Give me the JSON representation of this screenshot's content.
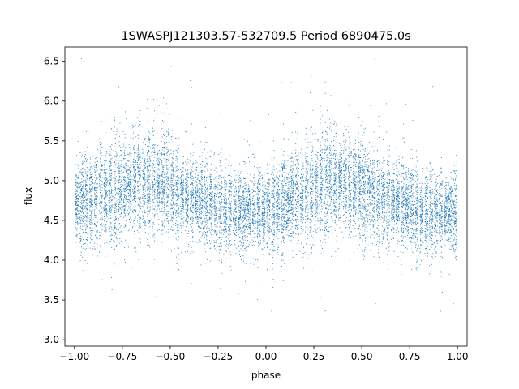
{
  "chart_data": {
    "type": "scatter",
    "title": "1SWASPJ121303.57-532709.5 Period 6890475.0s",
    "xlabel": "phase",
    "ylabel": "flux",
    "xlim": [
      -1.05,
      1.05
    ],
    "ylim": [
      2.92,
      6.68
    ],
    "x_ticks": [
      -1.0,
      -0.75,
      -0.5,
      -0.25,
      0.0,
      0.25,
      0.5,
      0.75,
      1.0
    ],
    "x_tick_labels": [
      "−1.00",
      "−0.75",
      "−0.50",
      "−0.25",
      "0.00",
      "0.25",
      "0.50",
      "0.75",
      "1.00"
    ],
    "y_ticks": [
      3.0,
      3.5,
      4.0,
      4.5,
      5.0,
      5.5,
      6.0,
      6.5
    ],
    "y_tick_labels": [
      "3.0",
      "3.5",
      "4.0",
      "4.5",
      "5.0",
      "5.5",
      "6.0",
      "6.5"
    ],
    "grid": false,
    "legend": "none",
    "series": [
      {
        "color": "#1f77b4",
        "marker": "point",
        "x_range": [
          -1.0,
          1.0
        ],
        "y_range": [
          3.05,
          6.55
        ],
        "approx_points": 12000,
        "binned_profile": {
          "phase": [
            -1.0,
            -0.9,
            -0.8,
            -0.7,
            -0.6,
            -0.5,
            -0.4,
            -0.3,
            -0.2,
            -0.1,
            0.0,
            0.1,
            0.2,
            0.3,
            0.4,
            0.5,
            0.6,
            0.7,
            0.8,
            0.9,
            1.0
          ],
          "median_flux": [
            4.72,
            4.8,
            4.85,
            4.95,
            5.0,
            4.9,
            4.75,
            4.72,
            4.6,
            4.6,
            4.62,
            4.72,
            4.8,
            4.95,
            5.0,
            4.9,
            4.75,
            4.72,
            4.6,
            4.6,
            4.6
          ],
          "spread": [
            0.3,
            0.3,
            0.32,
            0.33,
            0.33,
            0.32,
            0.28,
            0.28,
            0.27,
            0.25,
            0.25,
            0.3,
            0.32,
            0.33,
            0.33,
            0.32,
            0.28,
            0.28,
            0.27,
            0.25,
            0.25
          ]
        }
      }
    ]
  }
}
